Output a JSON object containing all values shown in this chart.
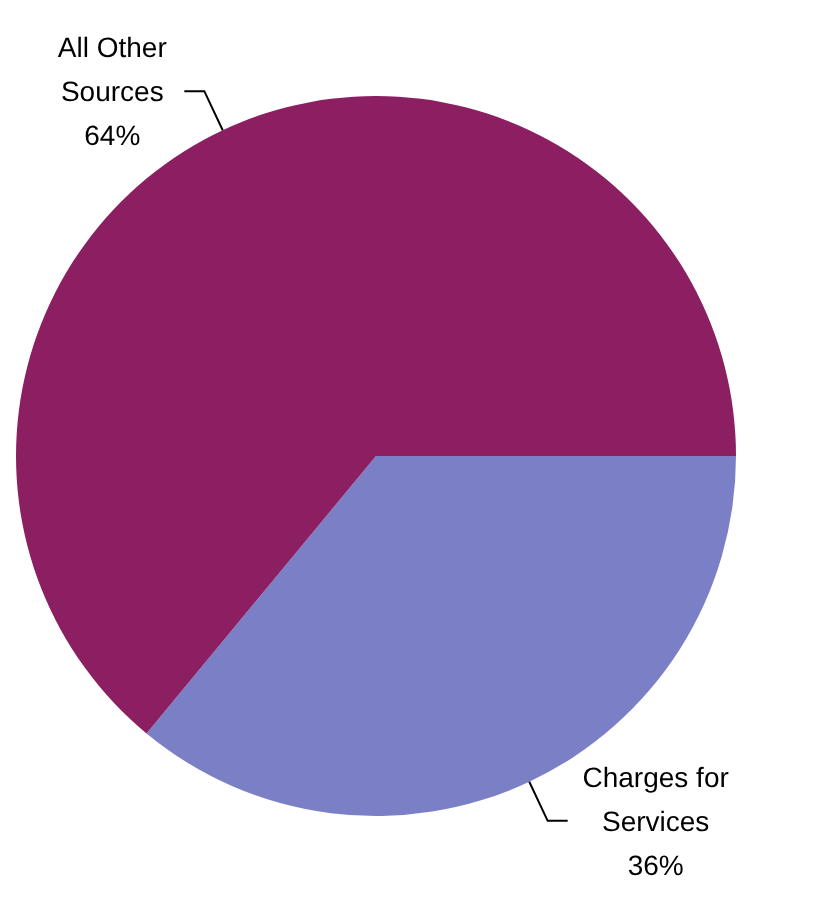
{
  "chart_data": {
    "type": "pie",
    "categories": [
      "Charges for Services",
      "All Other Sources"
    ],
    "values": [
      36,
      64
    ],
    "colors": [
      "#7b80c6",
      "#8c1f62"
    ],
    "data_labels": true,
    "value_labels": [
      "36%",
      "64%"
    ]
  }
}
